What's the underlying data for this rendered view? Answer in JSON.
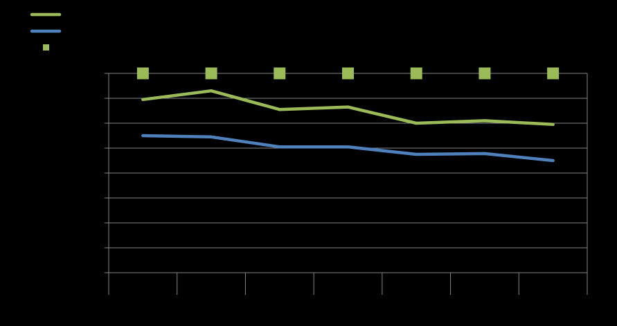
{
  "chart_data": {
    "type": "line",
    "title": "",
    "xlabel": "",
    "ylabel": "",
    "categories": [
      "",
      "",
      "",
      "",
      "",
      "",
      ""
    ],
    "ylim": [
      0,
      8
    ],
    "grid": true,
    "legend_position": "top-left",
    "series": [
      {
        "key": "green",
        "kind": "line",
        "color": "#9BBB59",
        "values": [
          6.95,
          7.3,
          6.55,
          6.65,
          6.0,
          6.1,
          5.95
        ]
      },
      {
        "key": "blue",
        "kind": "line",
        "color": "#4F81BD",
        "values": [
          5.5,
          5.45,
          5.05,
          5.05,
          4.75,
          4.78,
          4.5
        ]
      },
      {
        "key": "markers",
        "kind": "marker",
        "color": "#9BBB59",
        "values": [
          8,
          8,
          8,
          8,
          8,
          8,
          8
        ]
      }
    ]
  }
}
